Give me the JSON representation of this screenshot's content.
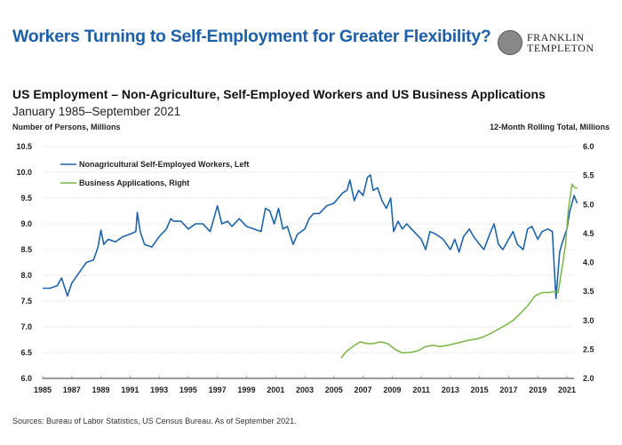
{
  "header": {
    "title": "Workers Turning to Self-Employment for Greater Flexibility?",
    "logo": "FRANKLIN TEMPLETON",
    "logo_line1": "FRANKLIN",
    "logo_line2": "TEMPLETON"
  },
  "subtitle": "US Employment – Non-Agriculture, Self-Employed Workers and US Business Applications",
  "date_range": "January 1985–September 2021",
  "source": "Sources: Bureau of Labor Statistics, US Census Bureau. As of September 2021.",
  "chart_data": {
    "type": "line",
    "ylabel_left": "Number of Persons, Millions",
    "ylabel_right": "12-Month Rolling Total, Millions",
    "xlim": [
      1985,
      2021.75
    ],
    "ylim_left": [
      6.0,
      10.5
    ],
    "ylim_right": [
      2.0,
      6.0
    ],
    "x_ticks": [
      "1985",
      "1987",
      "1989",
      "1991",
      "1993",
      "1995",
      "1997",
      "1999",
      "2001",
      "2003",
      "2005",
      "2007",
      "2009",
      "2011",
      "2013",
      "2015",
      "2017",
      "2019",
      "2021"
    ],
    "y_ticks_left": [
      "6.0",
      "6.5",
      "7.0",
      "7.5",
      "8.0",
      "8.5",
      "9.0",
      "9.5",
      "10.0",
      "10.5"
    ],
    "y_ticks_right": [
      "2.0",
      "2.5",
      "3.0",
      "3.5",
      "4.0",
      "4.5",
      "5.0",
      "5.5",
      "6.0"
    ],
    "grid": true,
    "legend_placement": "top-left",
    "series": [
      {
        "name": "Nonagricultural Self-Employed Workers, Left",
        "axis": "left",
        "color": "#1f64a8",
        "points": [
          [
            1985.0,
            7.75
          ],
          [
            1985.5,
            7.75
          ],
          [
            1986.0,
            7.8
          ],
          [
            1986.3,
            7.95
          ],
          [
            1986.7,
            7.6
          ],
          [
            1987.0,
            7.85
          ],
          [
            1987.5,
            8.05
          ],
          [
            1988.0,
            8.25
          ],
          [
            1988.5,
            8.3
          ],
          [
            1988.8,
            8.55
          ],
          [
            1989.0,
            8.88
          ],
          [
            1989.2,
            8.6
          ],
          [
            1989.5,
            8.7
          ],
          [
            1990.0,
            8.65
          ],
          [
            1990.5,
            8.75
          ],
          [
            1991.0,
            8.8
          ],
          [
            1991.4,
            8.85
          ],
          [
            1991.5,
            9.22
          ],
          [
            1991.7,
            8.85
          ],
          [
            1992.0,
            8.6
          ],
          [
            1992.5,
            8.55
          ],
          [
            1993.0,
            8.75
          ],
          [
            1993.5,
            8.9
          ],
          [
            1993.8,
            9.1
          ],
          [
            1994.0,
            9.05
          ],
          [
            1994.5,
            9.05
          ],
          [
            1995.0,
            8.9
          ],
          [
            1995.5,
            9.0
          ],
          [
            1996.0,
            9.0
          ],
          [
            1996.5,
            8.85
          ],
          [
            1997.0,
            9.35
          ],
          [
            1997.3,
            9.0
          ],
          [
            1997.7,
            9.05
          ],
          [
            1998.0,
            8.95
          ],
          [
            1998.5,
            9.1
          ],
          [
            1999.0,
            8.95
          ],
          [
            1999.5,
            8.9
          ],
          [
            2000.0,
            8.85
          ],
          [
            2000.3,
            9.3
          ],
          [
            2000.6,
            9.25
          ],
          [
            2000.9,
            9.0
          ],
          [
            2001.2,
            9.3
          ],
          [
            2001.5,
            8.9
          ],
          [
            2001.8,
            8.95
          ],
          [
            2002.2,
            8.6
          ],
          [
            2002.5,
            8.8
          ],
          [
            2003.0,
            8.9
          ],
          [
            2003.3,
            9.1
          ],
          [
            2003.6,
            9.2
          ],
          [
            2004.0,
            9.2
          ],
          [
            2004.5,
            9.35
          ],
          [
            2005.0,
            9.4
          ],
          [
            2005.3,
            9.5
          ],
          [
            2005.6,
            9.6
          ],
          [
            2005.9,
            9.65
          ],
          [
            2006.1,
            9.85
          ],
          [
            2006.4,
            9.45
          ],
          [
            2006.7,
            9.65
          ],
          [
            2007.0,
            9.55
          ],
          [
            2007.3,
            9.9
          ],
          [
            2007.5,
            9.95
          ],
          [
            2007.7,
            9.65
          ],
          [
            2008.0,
            9.7
          ],
          [
            2008.3,
            9.45
          ],
          [
            2008.6,
            9.3
          ],
          [
            2008.9,
            9.5
          ],
          [
            2009.1,
            8.85
          ],
          [
            2009.4,
            9.05
          ],
          [
            2009.7,
            8.9
          ],
          [
            2010.0,
            9.0
          ],
          [
            2010.5,
            8.85
          ],
          [
            2011.0,
            8.7
          ],
          [
            2011.3,
            8.5
          ],
          [
            2011.6,
            8.85
          ],
          [
            2012.0,
            8.8
          ],
          [
            2012.5,
            8.7
          ],
          [
            2013.0,
            8.5
          ],
          [
            2013.3,
            8.7
          ],
          [
            2013.6,
            8.45
          ],
          [
            2013.9,
            8.75
          ],
          [
            2014.3,
            8.9
          ],
          [
            2014.6,
            8.75
          ],
          [
            2015.0,
            8.6
          ],
          [
            2015.3,
            8.5
          ],
          [
            2015.7,
            8.8
          ],
          [
            2016.0,
            9.0
          ],
          [
            2016.3,
            8.6
          ],
          [
            2016.6,
            8.5
          ],
          [
            2017.0,
            8.7
          ],
          [
            2017.3,
            8.85
          ],
          [
            2017.6,
            8.6
          ],
          [
            2018.0,
            8.5
          ],
          [
            2018.3,
            8.9
          ],
          [
            2018.6,
            8.95
          ],
          [
            2019.0,
            8.7
          ],
          [
            2019.3,
            8.85
          ],
          [
            2019.7,
            8.9
          ],
          [
            2020.0,
            8.85
          ],
          [
            2020.25,
            7.55
          ],
          [
            2020.5,
            8.45
          ],
          [
            2020.7,
            8.65
          ],
          [
            2021.0,
            8.9
          ],
          [
            2021.2,
            9.25
          ],
          [
            2021.5,
            9.55
          ],
          [
            2021.7,
            9.4
          ]
        ]
      },
      {
        "name": "Business Applications, Right",
        "axis": "right",
        "color": "#7ab648",
        "points": [
          [
            2005.5,
            2.35
          ],
          [
            2005.8,
            2.45
          ],
          [
            2006.3,
            2.55
          ],
          [
            2006.8,
            2.63
          ],
          [
            2007.3,
            2.6
          ],
          [
            2007.7,
            2.6
          ],
          [
            2008.2,
            2.63
          ],
          [
            2008.7,
            2.6
          ],
          [
            2009.2,
            2.5
          ],
          [
            2009.7,
            2.44
          ],
          [
            2010.3,
            2.45
          ],
          [
            2010.8,
            2.48
          ],
          [
            2011.3,
            2.55
          ],
          [
            2011.8,
            2.57
          ],
          [
            2012.3,
            2.55
          ],
          [
            2012.8,
            2.57
          ],
          [
            2013.3,
            2.6
          ],
          [
            2013.8,
            2.63
          ],
          [
            2014.3,
            2.66
          ],
          [
            2014.8,
            2.68
          ],
          [
            2015.3,
            2.72
          ],
          [
            2015.8,
            2.78
          ],
          [
            2016.3,
            2.85
          ],
          [
            2016.8,
            2.92
          ],
          [
            2017.3,
            3.0
          ],
          [
            2017.8,
            3.12
          ],
          [
            2018.3,
            3.25
          ],
          [
            2018.8,
            3.42
          ],
          [
            2019.3,
            3.48
          ],
          [
            2019.8,
            3.48
          ],
          [
            2020.2,
            3.5
          ],
          [
            2020.4,
            3.48
          ],
          [
            2020.6,
            3.8
          ],
          [
            2020.9,
            4.3
          ],
          [
            2021.1,
            4.9
          ],
          [
            2021.35,
            5.35
          ],
          [
            2021.5,
            5.3
          ],
          [
            2021.7,
            5.28
          ]
        ]
      }
    ]
  }
}
